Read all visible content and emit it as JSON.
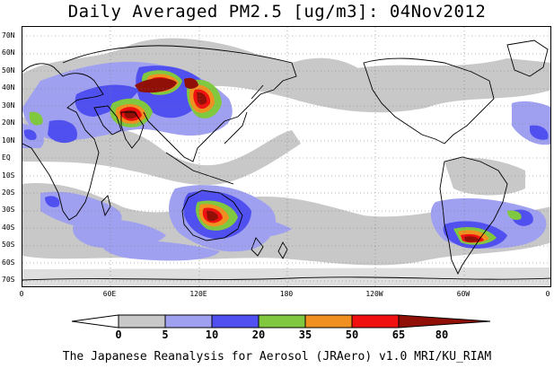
{
  "title": "Daily Averaged PM2.5 [ug/m3]: 04Nov2012",
  "credit": "The Japanese Reanalysis for Aerosol (JRAero) v1.0 MRI/KU_RIAM",
  "lat_labels": [
    "70N",
    "60N",
    "50N",
    "40N",
    "30N",
    "20N",
    "10N",
    "EQ",
    "10S",
    "20S",
    "30S",
    "40S",
    "50S",
    "60S",
    "70S"
  ],
  "lon_labels": [
    "0",
    "60E",
    "120E",
    "180",
    "120W",
    "60W",
    "0"
  ],
  "colorbar": {
    "levels": [
      "0",
      "5",
      "10",
      "20",
      "35",
      "50",
      "65",
      "80"
    ],
    "colors": [
      "#ffffff",
      "#c8c8c8",
      "#a0a0f0",
      "#5050f0",
      "#80c840",
      "#f09020",
      "#f01010",
      "#901008"
    ]
  }
}
